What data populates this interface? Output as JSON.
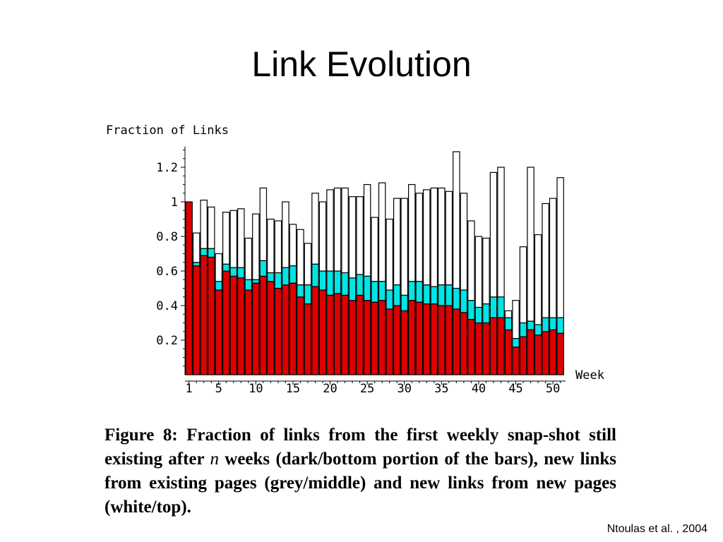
{
  "slide": {
    "title": "Link Evolution",
    "citation": "Ntoulas et al. , 2004"
  },
  "caption": {
    "part1": "Figure 8:  Fraction of links from the first weekly snap-shot still existing after ",
    "variable": "n",
    "part2": " weeks (dark/bottom portion of the bars), new links from existing pages (grey/middle) and new links from new pages (white/top)."
  },
  "colors": {
    "existing": "#dd0000",
    "new_links_existing_pages": "#00e5e5",
    "new_links_new_pages": "#ffffff",
    "outline": "#000000"
  },
  "chart_data": {
    "type": "bar",
    "stacked": true,
    "title": "",
    "xlabel": "Week",
    "ylabel": "Fraction of Links",
    "ylim": [
      0,
      1.3
    ],
    "yticks": [
      0.2,
      0.4,
      0.6,
      0.8,
      1,
      1.2
    ],
    "ytick_labels": [
      "0.2",
      "0.4",
      "0.6",
      "0.8",
      "1",
      "1.2"
    ],
    "xticks": [
      1,
      5,
      10,
      15,
      20,
      25,
      30,
      35,
      40,
      45,
      50
    ],
    "xtick_labels": [
      "1",
      "5",
      "10",
      "15",
      "20",
      "25",
      "30",
      "35",
      "40",
      "45",
      "50"
    ],
    "x": [
      1,
      2,
      3,
      4,
      5,
      6,
      7,
      8,
      9,
      10,
      11,
      12,
      13,
      14,
      15,
      16,
      17,
      18,
      19,
      20,
      21,
      22,
      23,
      24,
      25,
      26,
      27,
      28,
      29,
      30,
      31,
      32,
      33,
      34,
      35,
      36,
      37,
      38,
      39,
      40,
      41,
      42,
      43,
      44,
      45,
      46,
      47,
      48,
      49,
      50,
      51
    ],
    "series": [
      {
        "role": "existing",
        "values": [
          1.0,
          0.63,
          0.69,
          0.68,
          0.49,
          0.6,
          0.57,
          0.56,
          0.49,
          0.53,
          0.57,
          0.54,
          0.5,
          0.52,
          0.53,
          0.45,
          0.41,
          0.51,
          0.49,
          0.46,
          0.47,
          0.46,
          0.43,
          0.46,
          0.43,
          0.42,
          0.43,
          0.38,
          0.4,
          0.37,
          0.43,
          0.42,
          0.41,
          0.41,
          0.4,
          0.4,
          0.38,
          0.36,
          0.32,
          0.3,
          0.3,
          0.33,
          0.33,
          0.26,
          0.16,
          0.22,
          0.26,
          0.23,
          0.25,
          0.26,
          0.24
        ]
      },
      {
        "role": "new_links_existing_pages",
        "values": [
          0.0,
          0.02,
          0.04,
          0.05,
          0.05,
          0.04,
          0.05,
          0.06,
          0.06,
          0.02,
          0.09,
          0.05,
          0.09,
          0.1,
          0.1,
          0.07,
          0.11,
          0.13,
          0.11,
          0.14,
          0.13,
          0.13,
          0.13,
          0.12,
          0.14,
          0.12,
          0.11,
          0.11,
          0.12,
          0.09,
          0.11,
          0.12,
          0.11,
          0.1,
          0.12,
          0.12,
          0.12,
          0.13,
          0.11,
          0.09,
          0.11,
          0.12,
          0.12,
          0.07,
          0.05,
          0.08,
          0.05,
          0.06,
          0.08,
          0.07,
          0.09
        ]
      },
      {
        "role": "new_links_new_pages",
        "values": [
          0.0,
          0.17,
          0.28,
          0.24,
          0.16,
          0.3,
          0.33,
          0.34,
          0.24,
          0.38,
          0.42,
          0.31,
          0.3,
          0.38,
          0.24,
          0.32,
          0.24,
          0.41,
          0.4,
          0.47,
          0.48,
          0.49,
          0.47,
          0.45,
          0.53,
          0.37,
          0.57,
          0.41,
          0.5,
          0.56,
          0.56,
          0.51,
          0.55,
          0.57,
          0.56,
          0.54,
          0.79,
          0.56,
          0.46,
          0.41,
          0.38,
          0.72,
          0.75,
          0.04,
          0.22,
          0.44,
          0.89,
          0.52,
          0.66,
          0.69,
          0.81
        ]
      }
    ],
    "grid": false,
    "legend": "none"
  }
}
